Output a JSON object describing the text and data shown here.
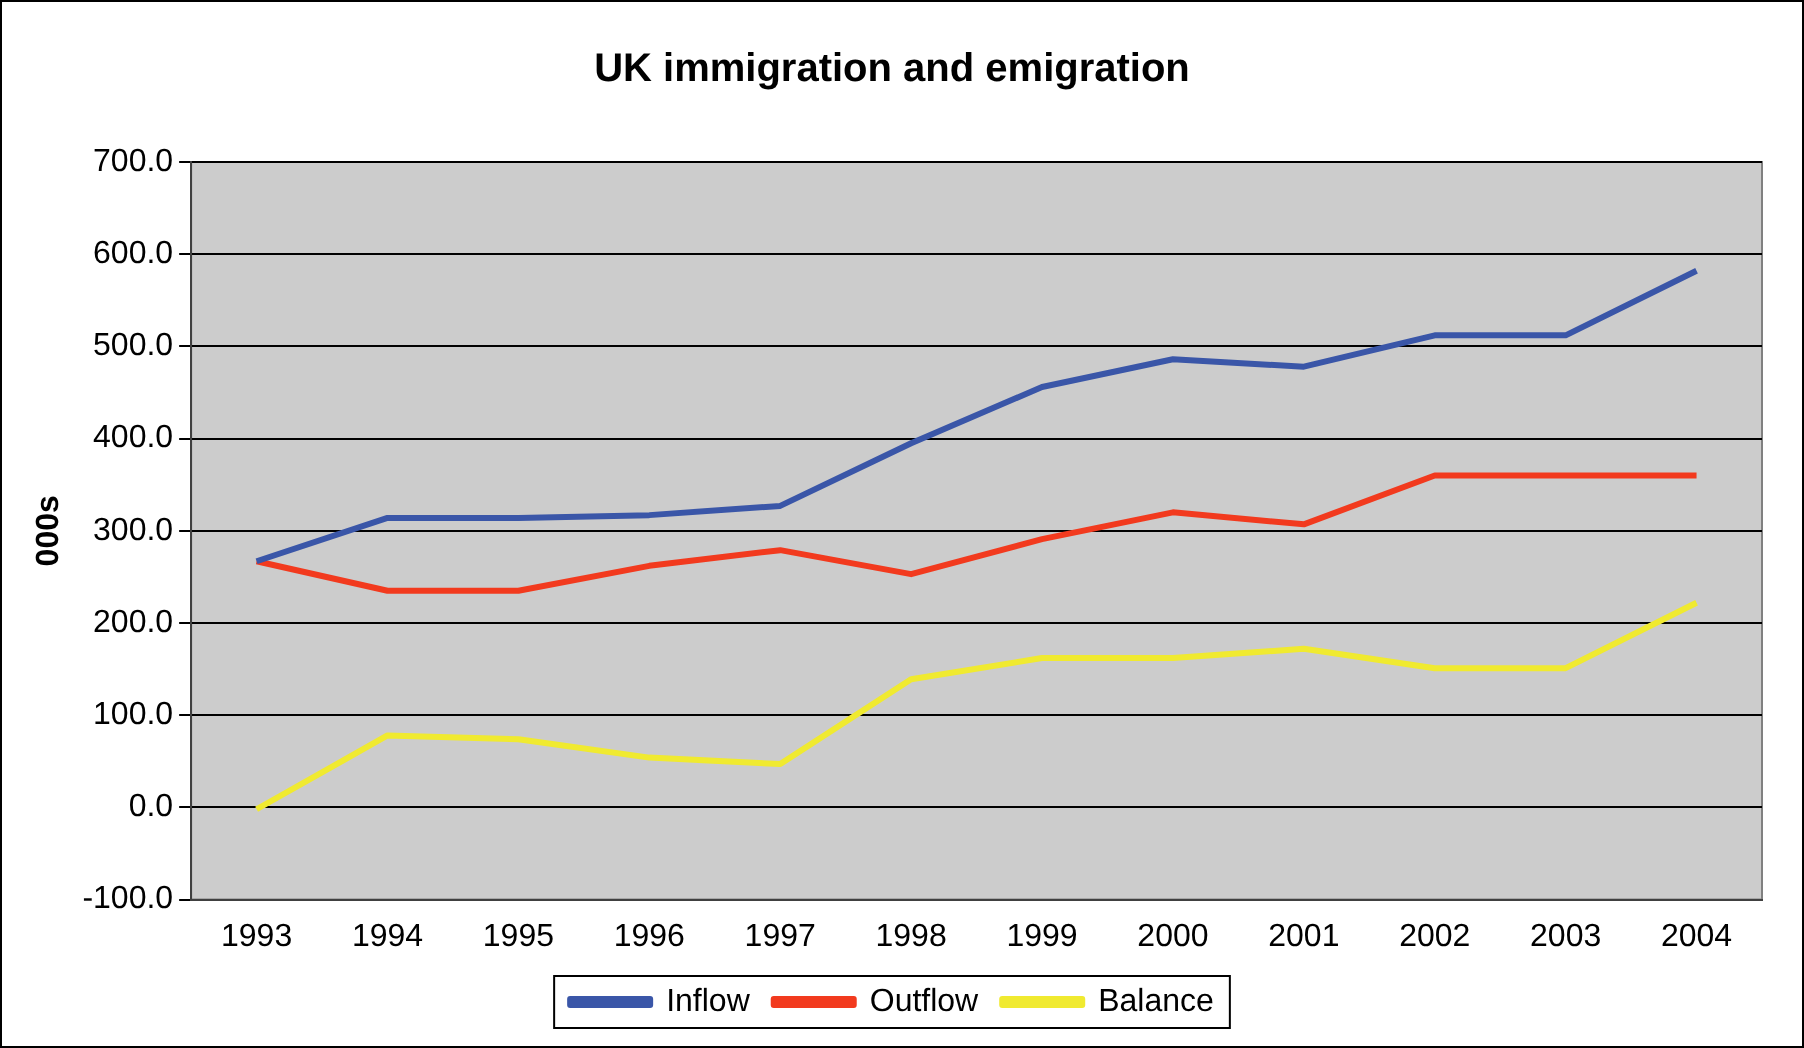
{
  "chart_data": {
    "type": "line",
    "title": "UK immigration and emigration",
    "ylabel": "000s",
    "categories": [
      "1993",
      "1994",
      "1995",
      "1996",
      "1997",
      "1998",
      "1999",
      "2000",
      "2001",
      "2002",
      "2003",
      "2004"
    ],
    "series": [
      {
        "name": "Inflow",
        "color": "#3a56a8",
        "values": [
          267,
          314,
          314,
          317,
          327,
          395,
          456,
          486,
          478,
          512,
          512,
          582
        ]
      },
      {
        "name": "Outflow",
        "color": "#f23a1e",
        "values": [
          267,
          235,
          235,
          262,
          279,
          253,
          291,
          320,
          307,
          360,
          360,
          360
        ]
      },
      {
        "name": "Balance",
        "color": "#f0ea30",
        "values": [
          -2,
          78,
          74,
          54,
          47,
          139,
          162,
          162,
          172,
          151,
          151,
          222
        ]
      }
    ],
    "ylim": [
      -100,
      700
    ],
    "yticks": [
      {
        "value": -100,
        "label": "-100.0"
      },
      {
        "value": 0,
        "label": "0.0"
      },
      {
        "value": 100,
        "label": "100.0"
      },
      {
        "value": 200,
        "label": "200.0"
      },
      {
        "value": 300,
        "label": "300.0"
      },
      {
        "value": 400,
        "label": "400.0"
      },
      {
        "value": 500,
        "label": "500.0"
      },
      {
        "value": 600,
        "label": "600.0"
      },
      {
        "value": 700,
        "label": "700.0"
      }
    ],
    "grid": "y",
    "legend": "bottom",
    "marker": "none",
    "line_style": "solid"
  }
}
